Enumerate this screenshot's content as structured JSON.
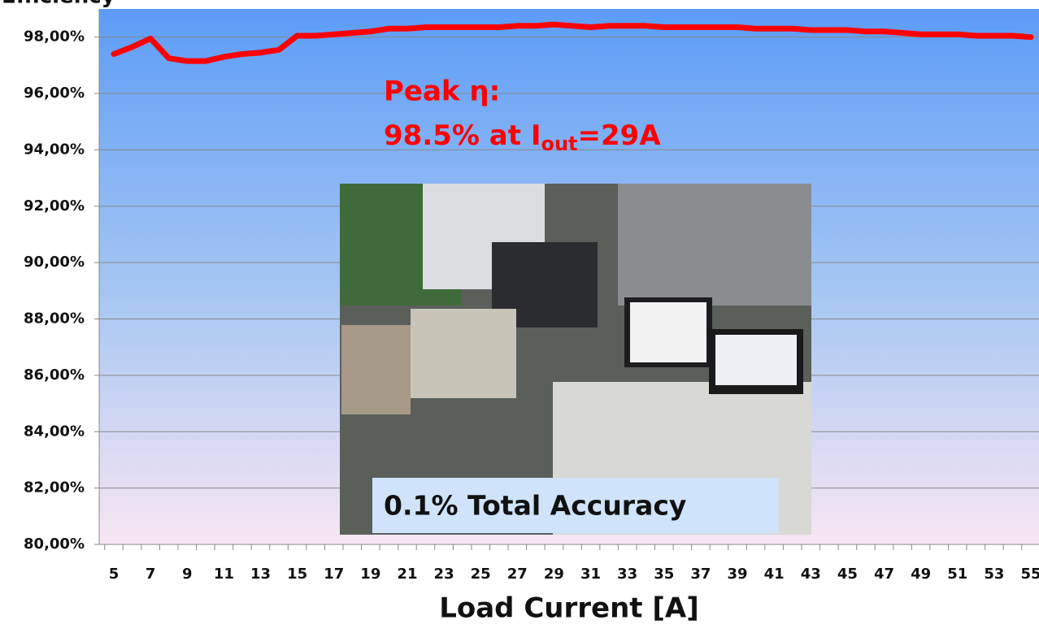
{
  "chart_data": {
    "type": "line",
    "y_label": "Efficiency",
    "x_label": "Load Current [A]",
    "annotation": {
      "line1": "Peak η:",
      "line2_main": "98.5% at I",
      "line2_sub": "out",
      "line2_end": "=29A"
    },
    "inset_caption": "0.1% Total Accuracy",
    "categories": [
      "5",
      null,
      "7",
      null,
      "9",
      null,
      "11",
      null,
      "13",
      null,
      "15",
      null,
      "17",
      null,
      "19",
      null,
      "21",
      null,
      "23",
      null,
      "25",
      null,
      "27",
      null,
      "29",
      null,
      "31",
      null,
      "33",
      null,
      "35",
      null,
      "37",
      null,
      "39",
      null,
      "41",
      null,
      "43",
      null,
      "45",
      null,
      "47",
      null,
      "49",
      null,
      "51",
      null,
      "53",
      null,
      "55"
    ],
    "values": [
      97.4,
      97.65,
      97.95,
      97.25,
      97.15,
      97.15,
      97.3,
      97.4,
      97.45,
      97.55,
      98.05,
      98.05,
      98.1,
      98.15,
      98.2,
      98.3,
      98.3,
      98.35,
      98.35,
      98.35,
      98.35,
      98.35,
      98.4,
      98.4,
      98.45,
      98.4,
      98.35,
      98.4,
      98.4,
      98.4,
      98.35,
      98.35,
      98.35,
      98.35,
      98.35,
      98.3,
      98.3,
      98.3,
      98.25,
      98.25,
      98.25,
      98.2,
      98.2,
      98.15,
      98.1,
      98.1,
      98.1,
      98.05,
      98.05,
      98.05,
      98.0
    ],
    "color": "#ff0000",
    "ylim": [
      80,
      99
    ],
    "yticks": [
      {
        "value": 80,
        "label": "80,00%"
      },
      {
        "value": 82,
        "label": "82,00%"
      },
      {
        "value": 84,
        "label": "84,00%"
      },
      {
        "value": 86,
        "label": "86,00%"
      },
      {
        "value": 88,
        "label": "88,00%"
      },
      {
        "value": 90,
        "label": "90,00%"
      },
      {
        "value": 92,
        "label": "92,00%"
      },
      {
        "value": 94,
        "label": "94,00%"
      },
      {
        "value": 96,
        "label": "96,00%"
      },
      {
        "value": 98,
        "label": "98,00%"
      }
    ],
    "grid": true
  }
}
